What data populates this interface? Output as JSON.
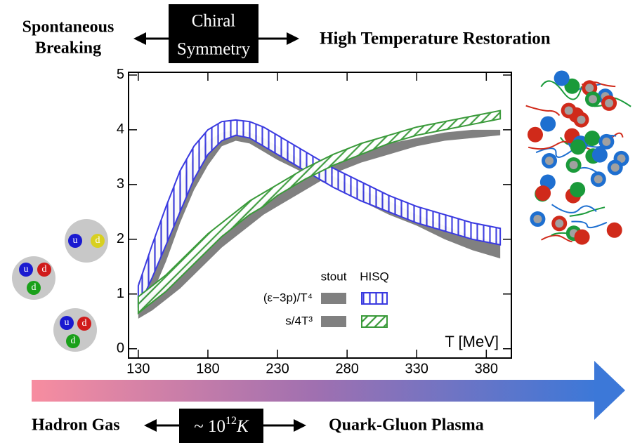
{
  "chart_data": {
    "type": "band",
    "x_label": "T [MeV]",
    "xlim": [
      123,
      398
    ],
    "ylim": [
      -0.17,
      5.05
    ],
    "xticks": [
      130,
      180,
      230,
      280,
      330,
      380
    ],
    "yticks": [
      0,
      1,
      2,
      3,
      4,
      5
    ],
    "x": [
      130,
      140,
      150,
      160,
      170,
      180,
      190,
      200,
      210,
      220,
      230,
      250,
      270,
      290,
      310,
      330,
      350,
      370,
      390
    ],
    "band_names": [
      "stout",
      "HISQ"
    ],
    "series": [
      {
        "name": "(ε−3p)/T⁴",
        "bands": [
          {
            "color": "#808080",
            "pattern": "solid",
            "lower": [
              0.7,
              1.0,
              1.6,
              2.3,
              2.9,
              3.35,
              3.7,
              3.8,
              3.75,
              3.6,
              3.45,
              3.2,
              2.95,
              2.7,
              2.45,
              2.25,
              2.0,
              1.8,
              1.65
            ],
            "upper": [
              1.2,
              1.8,
              2.5,
              3.0,
              3.5,
              3.8,
              3.95,
              4.0,
              3.95,
              3.85,
              3.7,
              3.4,
              3.15,
              2.9,
              2.7,
              2.45,
              2.25,
              2.05,
              1.95
            ]
          },
          {
            "color": "#3a3ae0",
            "pattern": "vertical",
            "lower": [
              0.75,
              1.3,
              1.9,
              2.5,
              3.1,
              3.55,
              3.8,
              3.9,
              3.85,
              3.7,
              3.55,
              3.25,
              2.95,
              2.7,
              2.5,
              2.3,
              2.15,
              2.0,
              1.9
            ],
            "upper": [
              1.15,
              1.9,
              2.6,
              3.25,
              3.7,
              4.0,
              4.15,
              4.18,
              4.15,
              4.05,
              3.9,
              3.6,
              3.3,
              3.05,
              2.8,
              2.6,
              2.45,
              2.3,
              2.2
            ]
          }
        ]
      },
      {
        "name": "s/4T³",
        "bands": [
          {
            "color": "#808080",
            "pattern": "solid",
            "lower": [
              0.55,
              0.7,
              0.9,
              1.1,
              1.35,
              1.6,
              1.85,
              2.05,
              2.25,
              2.45,
              2.6,
              2.9,
              3.2,
              3.4,
              3.55,
              3.7,
              3.8,
              3.85,
              3.9
            ],
            "upper": [
              0.85,
              1.0,
              1.2,
              1.4,
              1.65,
              1.9,
              2.15,
              2.35,
              2.55,
              2.7,
              2.85,
              3.15,
              3.4,
              3.6,
              3.75,
              3.85,
              3.95,
              4.0,
              4.0
            ]
          },
          {
            "color": "#3a9a3a",
            "pattern": "diagonal",
            "lower": [
              0.65,
              0.85,
              1.05,
              1.3,
              1.55,
              1.8,
              2.05,
              2.25,
              2.45,
              2.6,
              2.8,
              3.1,
              3.35,
              3.55,
              3.75,
              3.9,
              4.0,
              4.1,
              4.2
            ],
            "upper": [
              0.95,
              1.15,
              1.35,
              1.6,
              1.85,
              2.1,
              2.3,
              2.5,
              2.7,
              2.85,
              3.0,
              3.3,
              3.55,
              3.75,
              3.9,
              4.05,
              4.15,
              4.25,
              4.35
            ]
          }
        ]
      }
    ]
  },
  "annotations": {
    "left_top": [
      "Spontaneous",
      "Breaking"
    ],
    "center_box": [
      "Chiral",
      "Symmetry"
    ],
    "right_top": "High Temperature  Restoration",
    "left_bottom": "Hadron Gas",
    "temperature": {
      "prefix": "~ 10",
      "exponent": "12",
      "unit": "K"
    },
    "right_bottom": "Quark-Gluon Plasma"
  },
  "hadrons": [
    {
      "quarks": [
        {
          "label": "u",
          "color": "#1a1ad0"
        },
        {
          "label": "d",
          "color": "#d8d020"
        }
      ]
    },
    {
      "quarks": [
        {
          "label": "u",
          "color": "#1a1ad0"
        },
        {
          "label": "d",
          "color": "#d01a1a"
        },
        {
          "label": "d",
          "color": "#1aa01a"
        }
      ]
    },
    {
      "quarks": [
        {
          "label": "u",
          "color": "#1a1ad0"
        },
        {
          "label": "d",
          "color": "#d01a1a"
        },
        {
          "label": "d",
          "color": "#1aa01a"
        }
      ]
    }
  ]
}
